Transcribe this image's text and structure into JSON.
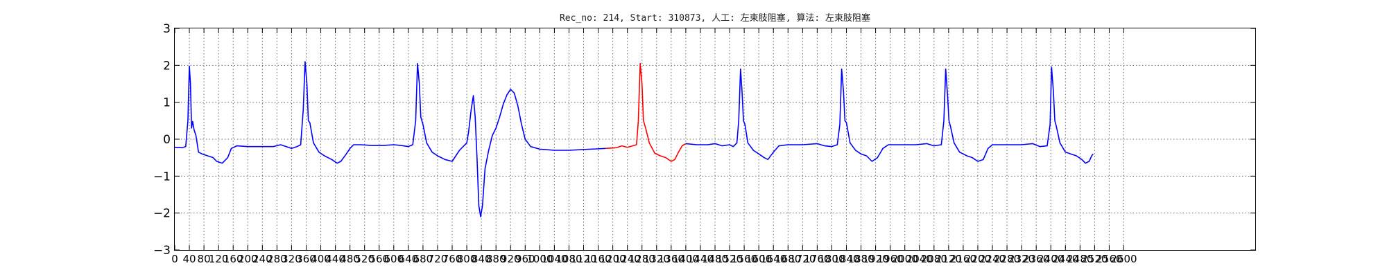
{
  "chart_data": {
    "type": "line",
    "title": "Rec_no: 214, Start: 310873, 人工: 左束肢阻塞, 算法: 左束肢阻塞",
    "xlabel": "",
    "ylabel": "",
    "xlim": [
      0,
      2960
    ],
    "ylim": [
      -3,
      3
    ],
    "y_ticks": [
      3,
      2,
      1,
      0,
      -1,
      -2,
      -3
    ],
    "y_tick_labels": [
      "3",
      "2",
      "1",
      "0",
      "−1",
      "−2",
      "−3"
    ],
    "x_ticks": [
      0,
      40,
      80,
      120,
      160,
      200,
      240,
      280,
      320,
      360,
      400,
      440,
      480,
      520,
      560,
      600,
      640,
      680,
      720,
      760,
      800,
      840,
      880,
      920,
      960,
      1000,
      1040,
      1080,
      1120,
      1160,
      1200,
      1240,
      1280,
      1320,
      1360,
      1400,
      1440,
      1480,
      1520,
      1560,
      1600,
      1640,
      1680,
      1720,
      1760,
      1800,
      1840,
      1880,
      1920,
      1960,
      2000,
      2040,
      2080,
      2120,
      2160,
      2200,
      2240,
      2280,
      2320,
      2360,
      2400,
      2440,
      2480,
      2520,
      2560,
      2600
    ],
    "grid": true,
    "colors": {
      "normal": "#0000ff",
      "highlight": "#ff0000",
      "axis": "#000000",
      "grid": "#666666"
    },
    "series": [
      {
        "color": "#0000ff",
        "points": [
          [
            0,
            -0.22
          ],
          [
            20,
            -0.23
          ],
          [
            30,
            -0.2
          ],
          [
            36,
            0.5
          ],
          [
            40,
            1.98
          ],
          [
            43,
            1.5
          ],
          [
            46,
            0.3
          ],
          [
            49,
            0.48
          ],
          [
            53,
            0.25
          ],
          [
            58,
            0.1
          ],
          [
            65,
            -0.35
          ],
          [
            75,
            -0.4
          ],
          [
            90,
            -0.45
          ],
          [
            105,
            -0.5
          ],
          [
            115,
            -0.6
          ],
          [
            130,
            -0.65
          ],
          [
            145,
            -0.5
          ],
          [
            155,
            -0.25
          ],
          [
            170,
            -0.18
          ],
          [
            200,
            -0.2
          ],
          [
            230,
            -0.2
          ],
          [
            270,
            -0.2
          ],
          [
            290,
            -0.15
          ],
          [
            305,
            -0.2
          ],
          [
            320,
            -0.25
          ],
          [
            335,
            -0.2
          ],
          [
            345,
            -0.15
          ],
          [
            352,
            0.8
          ],
          [
            357,
            2.1
          ],
          [
            362,
            1.5
          ],
          [
            366,
            0.5
          ],
          [
            370,
            0.45
          ],
          [
            380,
            -0.1
          ],
          [
            395,
            -0.35
          ],
          [
            410,
            -0.45
          ],
          [
            430,
            -0.55
          ],
          [
            445,
            -0.65
          ],
          [
            455,
            -0.6
          ],
          [
            470,
            -0.4
          ],
          [
            480,
            -0.25
          ],
          [
            490,
            -0.15
          ],
          [
            510,
            -0.15
          ],
          [
            540,
            -0.17
          ],
          [
            570,
            -0.17
          ],
          [
            600,
            -0.15
          ],
          [
            620,
            -0.17
          ],
          [
            640,
            -0.2
          ],
          [
            652,
            -0.15
          ],
          [
            660,
            0.5
          ],
          [
            665,
            2.05
          ],
          [
            670,
            1.5
          ],
          [
            674,
            0.6
          ],
          [
            680,
            0.4
          ],
          [
            690,
            -0.1
          ],
          [
            705,
            -0.35
          ],
          [
            720,
            -0.45
          ],
          [
            740,
            -0.55
          ],
          [
            760,
            -0.6
          ],
          [
            770,
            -0.45
          ],
          [
            780,
            -0.3
          ],
          [
            790,
            -0.2
          ],
          [
            800,
            -0.1
          ],
          [
            805,
            0.2
          ],
          [
            812,
            0.8
          ],
          [
            818,
            1.18
          ],
          [
            823,
            0.6
          ],
          [
            828,
            -0.5
          ],
          [
            833,
            -1.8
          ],
          [
            838,
            -2.1
          ],
          [
            843,
            -1.8
          ],
          [
            850,
            -0.8
          ],
          [
            860,
            -0.3
          ],
          [
            870,
            0.1
          ],
          [
            880,
            0.3
          ],
          [
            890,
            0.6
          ],
          [
            900,
            0.95
          ],
          [
            910,
            1.2
          ],
          [
            920,
            1.35
          ],
          [
            930,
            1.25
          ],
          [
            940,
            0.9
          ],
          [
            950,
            0.4
          ],
          [
            960,
            0.0
          ],
          [
            975,
            -0.2
          ],
          [
            1000,
            -0.27
          ],
          [
            1040,
            -0.3
          ],
          [
            1080,
            -0.3
          ],
          [
            1120,
            -0.28
          ],
          [
            1160,
            -0.26
          ],
          [
            1180,
            -0.25
          ]
        ]
      },
      {
        "color": "#ff0000",
        "points": [
          [
            1180,
            -0.25
          ],
          [
            1210,
            -0.23
          ],
          [
            1225,
            -0.18
          ],
          [
            1240,
            -0.22
          ],
          [
            1255,
            -0.18
          ],
          [
            1265,
            -0.15
          ],
          [
            1270,
            0.5
          ],
          [
            1275,
            2.05
          ],
          [
            1280,
            1.5
          ],
          [
            1284,
            0.5
          ],
          [
            1290,
            0.3
          ],
          [
            1300,
            -0.1
          ],
          [
            1315,
            -0.38
          ],
          [
            1330,
            -0.45
          ],
          [
            1345,
            -0.5
          ],
          [
            1360,
            -0.6
          ],
          [
            1370,
            -0.55
          ],
          [
            1380,
            -0.35
          ],
          [
            1390,
            -0.18
          ],
          [
            1400,
            -0.12
          ]
        ]
      },
      {
        "color": "#0000ff",
        "points": [
          [
            1400,
            -0.12
          ],
          [
            1430,
            -0.15
          ],
          [
            1460,
            -0.15
          ],
          [
            1480,
            -0.12
          ],
          [
            1500,
            -0.18
          ],
          [
            1520,
            -0.15
          ],
          [
            1530,
            -0.2
          ],
          [
            1540,
            -0.1
          ],
          [
            1545,
            0.5
          ],
          [
            1550,
            1.9
          ],
          [
            1554,
            1.3
          ],
          [
            1558,
            0.5
          ],
          [
            1562,
            0.4
          ],
          [
            1570,
            -0.1
          ],
          [
            1585,
            -0.3
          ],
          [
            1600,
            -0.4
          ],
          [
            1615,
            -0.5
          ],
          [
            1625,
            -0.55
          ],
          [
            1640,
            -0.35
          ],
          [
            1655,
            -0.18
          ],
          [
            1680,
            -0.15
          ],
          [
            1720,
            -0.15
          ],
          [
            1760,
            -0.12
          ],
          [
            1780,
            -0.18
          ],
          [
            1800,
            -0.2
          ],
          [
            1815,
            -0.15
          ],
          [
            1822,
            0.4
          ],
          [
            1827,
            1.9
          ],
          [
            1832,
            1.3
          ],
          [
            1836,
            0.5
          ],
          [
            1840,
            0.45
          ],
          [
            1850,
            -0.1
          ],
          [
            1865,
            -0.3
          ],
          [
            1880,
            -0.4
          ],
          [
            1895,
            -0.45
          ],
          [
            1910,
            -0.6
          ],
          [
            1925,
            -0.5
          ],
          [
            1940,
            -0.25
          ],
          [
            1955,
            -0.15
          ],
          [
            1990,
            -0.15
          ],
          [
            2030,
            -0.15
          ],
          [
            2060,
            -0.12
          ],
          [
            2080,
            -0.18
          ],
          [
            2100,
            -0.15
          ],
          [
            2107,
            0.5
          ],
          [
            2112,
            1.9
          ],
          [
            2117,
            1.2
          ],
          [
            2121,
            0.5
          ],
          [
            2125,
            0.35
          ],
          [
            2135,
            -0.1
          ],
          [
            2150,
            -0.35
          ],
          [
            2170,
            -0.45
          ],
          [
            2185,
            -0.5
          ],
          [
            2200,
            -0.6
          ],
          [
            2215,
            -0.55
          ],
          [
            2228,
            -0.25
          ],
          [
            2240,
            -0.15
          ],
          [
            2280,
            -0.15
          ],
          [
            2320,
            -0.15
          ],
          [
            2350,
            -0.12
          ],
          [
            2370,
            -0.2
          ],
          [
            2390,
            -0.18
          ],
          [
            2398,
            0.4
          ],
          [
            2402,
            1.95
          ],
          [
            2407,
            1.3
          ],
          [
            2411,
            0.5
          ],
          [
            2415,
            0.35
          ],
          [
            2425,
            -0.1
          ],
          [
            2440,
            -0.35
          ],
          [
            2455,
            -0.4
          ],
          [
            2470,
            -0.45
          ],
          [
            2485,
            -0.55
          ],
          [
            2495,
            -0.65
          ],
          [
            2505,
            -0.6
          ],
          [
            2512,
            -0.45
          ],
          [
            2516,
            -0.4
          ]
        ]
      }
    ]
  }
}
